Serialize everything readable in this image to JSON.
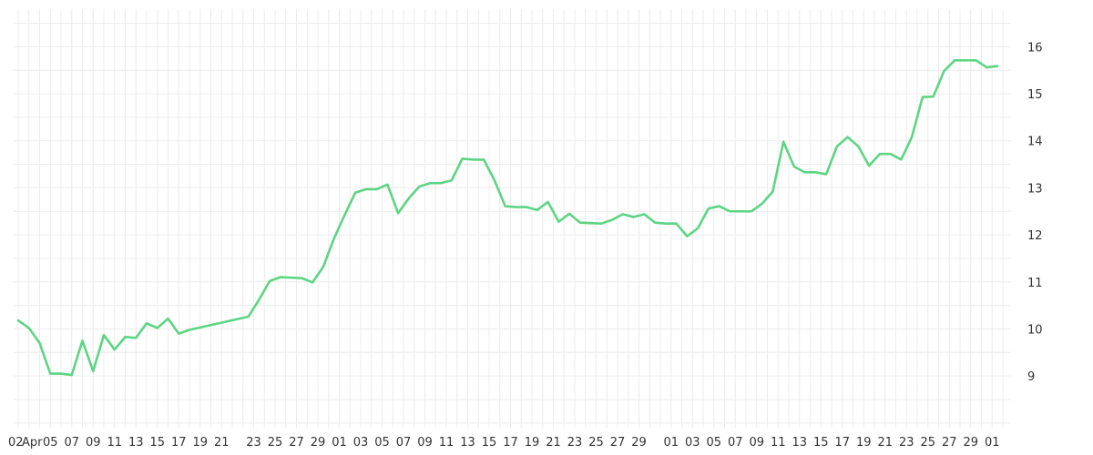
{
  "chart_data": {
    "type": "line",
    "title": "",
    "xlabel": "",
    "ylabel": "",
    "ylim": [
      7.9,
      16.8
    ],
    "y_ticks": [
      9,
      10,
      11,
      12,
      13,
      14,
      15,
      16
    ],
    "grid": true,
    "line_color": "#5cd583",
    "x_tick_labels": [
      {
        "i": 0,
        "label": "02"
      },
      {
        "i": 1,
        "label": "Apr"
      },
      {
        "i": 3,
        "label": "05"
      },
      {
        "i": 5,
        "label": "07"
      },
      {
        "i": 7,
        "label": "09"
      },
      {
        "i": 9,
        "label": "11"
      },
      {
        "i": 11,
        "label": "13"
      },
      {
        "i": 13,
        "label": "15"
      },
      {
        "i": 15,
        "label": "17"
      },
      {
        "i": 17,
        "label": "19"
      },
      {
        "i": 19,
        "label": "21"
      },
      {
        "i": 22,
        "label": "23"
      },
      {
        "i": 24,
        "label": "25"
      },
      {
        "i": 26,
        "label": "27"
      },
      {
        "i": 28,
        "label": "29"
      },
      {
        "i": 30,
        "label": "01"
      },
      {
        "i": 32,
        "label": "03"
      },
      {
        "i": 34,
        "label": "05"
      },
      {
        "i": 36,
        "label": "07"
      },
      {
        "i": 38,
        "label": "09"
      },
      {
        "i": 40,
        "label": "11"
      },
      {
        "i": 42,
        "label": "13"
      },
      {
        "i": 44,
        "label": "15"
      },
      {
        "i": 46,
        "label": "17"
      },
      {
        "i": 48,
        "label": "19"
      },
      {
        "i": 50,
        "label": "21"
      },
      {
        "i": 52,
        "label": "23"
      },
      {
        "i": 54,
        "label": "25"
      },
      {
        "i": 56,
        "label": "27"
      },
      {
        "i": 58,
        "label": "29"
      },
      {
        "i": 61,
        "label": "01"
      },
      {
        "i": 63,
        "label": "03"
      },
      {
        "i": 65,
        "label": "05"
      },
      {
        "i": 67,
        "label": "07"
      },
      {
        "i": 69,
        "label": "09"
      },
      {
        "i": 71,
        "label": "11"
      },
      {
        "i": 73,
        "label": "13"
      },
      {
        "i": 75,
        "label": "15"
      },
      {
        "i": 77,
        "label": "17"
      },
      {
        "i": 79,
        "label": "19"
      },
      {
        "i": 81,
        "label": "21"
      },
      {
        "i": 83,
        "label": "23"
      },
      {
        "i": 85,
        "label": "25"
      },
      {
        "i": 87,
        "label": "27"
      },
      {
        "i": 89,
        "label": "29"
      },
      {
        "i": 91,
        "label": "01"
      }
    ],
    "series": [
      {
        "points": [
          {
            "i": 0,
            "y": 10.18
          },
          {
            "i": 1,
            "y": 10.02
          },
          {
            "i": 2,
            "y": 9.7
          },
          {
            "i": 3,
            "y": 9.05
          },
          {
            "i": 4,
            "y": 9.05
          },
          {
            "i": 5,
            "y": 9.02
          },
          {
            "i": 6,
            "y": 9.75
          },
          {
            "i": 7,
            "y": 9.1
          },
          {
            "i": 8,
            "y": 9.87
          },
          {
            "i": 9,
            "y": 9.56
          },
          {
            "i": 10,
            "y": 9.83
          },
          {
            "i": 11,
            "y": 9.81
          },
          {
            "i": 12,
            "y": 10.12
          },
          {
            "i": 13,
            "y": 10.02
          },
          {
            "i": 14,
            "y": 10.22
          },
          {
            "i": 15,
            "y": 9.9
          },
          {
            "i": 16,
            "y": 9.98
          },
          {
            "i": 21.5,
            "y": 10.26
          },
          {
            "i": 22.5,
            "y": 10.62
          },
          {
            "i": 23.5,
            "y": 11.02
          },
          {
            "i": 24.5,
            "y": 11.1
          },
          {
            "i": 25.5,
            "y": 11.09
          },
          {
            "i": 26.5,
            "y": 11.08
          },
          {
            "i": 27.5,
            "y": 10.99
          },
          {
            "i": 28.5,
            "y": 11.32
          },
          {
            "i": 29.5,
            "y": 11.92
          },
          {
            "i": 30.5,
            "y": 12.42
          },
          {
            "i": 31.5,
            "y": 12.9
          },
          {
            "i": 32.5,
            "y": 12.97
          },
          {
            "i": 33.5,
            "y": 12.97
          },
          {
            "i": 34.5,
            "y": 13.07
          },
          {
            "i": 35.5,
            "y": 12.46
          },
          {
            "i": 36.5,
            "y": 12.78
          },
          {
            "i": 37.5,
            "y": 13.03
          },
          {
            "i": 38.5,
            "y": 13.1
          },
          {
            "i": 39.5,
            "y": 13.1
          },
          {
            "i": 40.5,
            "y": 13.16
          },
          {
            "i": 41.5,
            "y": 13.62
          },
          {
            "i": 42.5,
            "y": 13.6
          },
          {
            "i": 43.5,
            "y": 13.6
          },
          {
            "i": 44.5,
            "y": 13.16
          },
          {
            "i": 45.5,
            "y": 12.61
          },
          {
            "i": 46.5,
            "y": 12.59
          },
          {
            "i": 47.5,
            "y": 12.59
          },
          {
            "i": 48.5,
            "y": 12.53
          },
          {
            "i": 49.5,
            "y": 12.7
          },
          {
            "i": 50.5,
            "y": 12.28
          },
          {
            "i": 51.5,
            "y": 12.45
          },
          {
            "i": 52.5,
            "y": 12.26
          },
          {
            "i": 53.5,
            "y": 12.25
          },
          {
            "i": 54.5,
            "y": 12.24
          },
          {
            "i": 55.5,
            "y": 12.32
          },
          {
            "i": 56.5,
            "y": 12.44
          },
          {
            "i": 57.5,
            "y": 12.38
          },
          {
            "i": 58.5,
            "y": 12.44
          },
          {
            "i": 59.5,
            "y": 12.26
          },
          {
            "i": 60.5,
            "y": 12.24
          },
          {
            "i": 61.5,
            "y": 12.24
          },
          {
            "i": 62.5,
            "y": 11.97
          },
          {
            "i": 63.5,
            "y": 12.14
          },
          {
            "i": 64.5,
            "y": 12.56
          },
          {
            "i": 65.5,
            "y": 12.61
          },
          {
            "i": 66.5,
            "y": 12.5
          },
          {
            "i": 67.5,
            "y": 12.5
          },
          {
            "i": 68.5,
            "y": 12.5
          },
          {
            "i": 69.5,
            "y": 12.66
          },
          {
            "i": 70.5,
            "y": 12.92
          },
          {
            "i": 71.5,
            "y": 13.98
          },
          {
            "i": 72.5,
            "y": 13.45
          },
          {
            "i": 73.5,
            "y": 13.33
          },
          {
            "i": 74.5,
            "y": 13.33
          },
          {
            "i": 75.5,
            "y": 13.29
          },
          {
            "i": 76.5,
            "y": 13.88
          },
          {
            "i": 77.5,
            "y": 14.08
          },
          {
            "i": 78.5,
            "y": 13.88
          },
          {
            "i": 79.5,
            "y": 13.47
          },
          {
            "i": 80.5,
            "y": 13.72
          },
          {
            "i": 81.5,
            "y": 13.72
          },
          {
            "i": 82.5,
            "y": 13.6
          },
          {
            "i": 83.5,
            "y": 14.08
          },
          {
            "i": 84.5,
            "y": 14.93
          },
          {
            "i": 85.5,
            "y": 14.94
          },
          {
            "i": 86.5,
            "y": 15.48
          },
          {
            "i": 87.5,
            "y": 15.71
          },
          {
            "i": 88.5,
            "y": 15.71
          },
          {
            "i": 89.5,
            "y": 15.71
          },
          {
            "i": 90.5,
            "y": 15.56
          },
          {
            "i": 91.5,
            "y": 15.59
          }
        ]
      }
    ]
  }
}
